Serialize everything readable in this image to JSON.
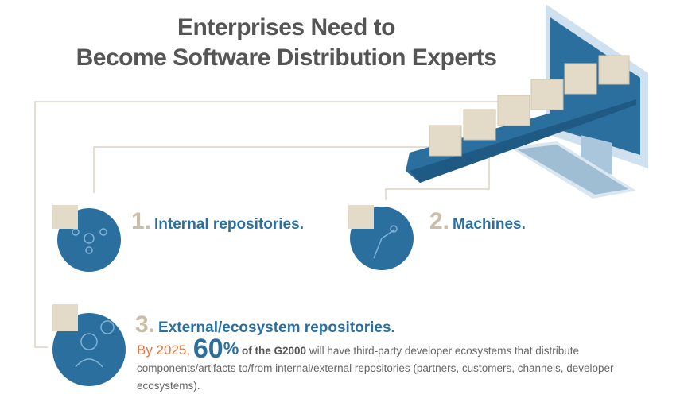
{
  "title": {
    "line1": "Enterprises Need to",
    "line2": "Become Software Distribution Experts"
  },
  "items": [
    {
      "number": "1.",
      "label": "Internal repositories.",
      "icon": "network-person-icon"
    },
    {
      "number": "2.",
      "label": "Machines.",
      "icon": "robot-arm-icon"
    },
    {
      "number": "3.",
      "label": "External/ecosystem repositories.",
      "icon": "user-chat-icon"
    }
  ],
  "stat": {
    "prefix": "By 2025,",
    "value": "60",
    "unit": "%",
    "subject": "of the G2000",
    "text": "will have third-party developer ecosystems that distribute components/artifacts to/from internal/external repositories (partners, customers, channels, developer ecosystems)."
  },
  "colors": {
    "blue": "#2b6f9f",
    "beige": "#c9bfa8",
    "orange": "#e8743b",
    "gray": "#555555"
  }
}
